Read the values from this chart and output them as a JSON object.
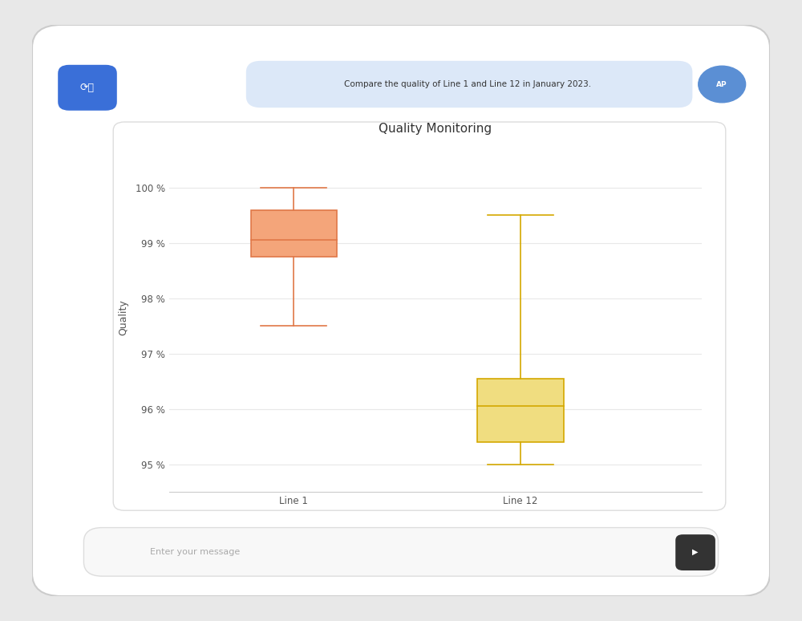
{
  "title": "Quality Monitoring",
  "ylabel": "Quality",
  "categories": [
    "Line 1",
    "Line 12"
  ],
  "line1": {
    "whisker_min": 97.5,
    "q1": 98.75,
    "median": 99.05,
    "q3": 99.6,
    "whisker_max": 100.0,
    "box_color": "#F4A57A",
    "edge_color": "#E07848",
    "median_color": "#E07848"
  },
  "line12": {
    "whisker_min": 95.0,
    "q1": 95.4,
    "median": 96.05,
    "q3": 96.55,
    "whisker_max": 99.5,
    "box_color": "#F0DD80",
    "edge_color": "#D4A800",
    "median_color": "#D4A800"
  },
  "ylim": [
    94.5,
    100.8
  ],
  "yticks": [
    95,
    96,
    97,
    98,
    99,
    100
  ],
  "ytick_labels": [
    "95 %",
    "96 %",
    "97 %",
    "98 %",
    "99 %",
    "100 %"
  ],
  "chart_bg": "#ffffff",
  "ui_bg": "#e8e8e8",
  "card_bg": "#ffffff",
  "grid_color": "#e8e8e8",
  "title_fontsize": 11,
  "label_fontsize": 9,
  "tick_fontsize": 8.5,
  "box_width": 0.38,
  "prompt_text": "Compare the quality of Line 1 and Line 12 in January 2023.",
  "prompt_bg": "#dce8f8",
  "avatar_bg": "#5b8fd4",
  "avatar_text": "AP",
  "input_placeholder": "Enter your message",
  "input_bar_bg": "#f5f5f5",
  "send_btn_bg": "#333333"
}
